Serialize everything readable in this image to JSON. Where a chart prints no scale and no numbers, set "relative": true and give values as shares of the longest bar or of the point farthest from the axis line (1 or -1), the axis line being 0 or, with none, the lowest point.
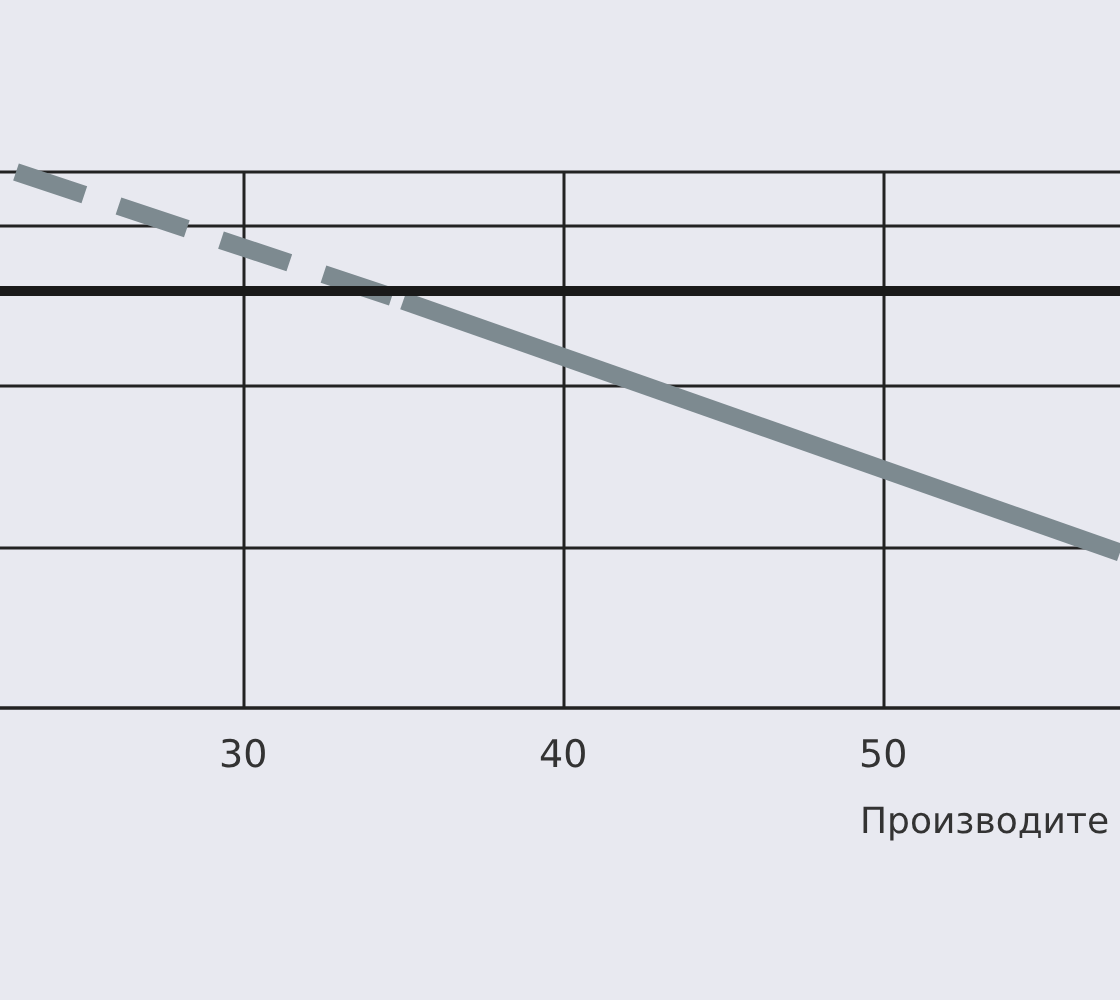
{
  "chart_data": {
    "type": "line",
    "xlabel": "Производите",
    "relative": true,
    "xlim": [
      22.4,
      57.4
    ],
    "xticks": [
      30,
      40,
      50
    ],
    "grid": true,
    "tick_labels": "x",
    "marker": "none",
    "series": [
      {
        "color": "#7d8a90",
        "line_style": "dashed",
        "x": [
          22.9,
          35
        ],
        "values": [
          1,
          0.76
        ]
      },
      {
        "color": "#7d8a90",
        "line_style": "solid",
        "x": [
          35,
          57.4
        ],
        "values": [
          0.76,
          0.29
        ]
      }
    ],
    "ref_lines": [
      {
        "axis": "y",
        "value": 0.78,
        "color": "#1a1a1a",
        "line_style": "solid"
      }
    ]
  }
}
